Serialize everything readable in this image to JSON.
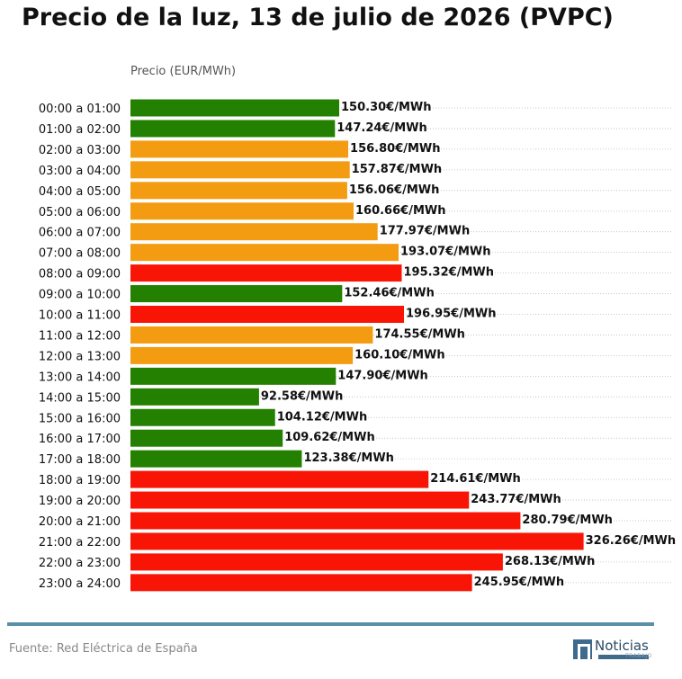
{
  "title": "Precio de la luz, 13 de julio de 2026 (PVPC)",
  "source": "Fuente: Red Eléctrica de España",
  "logo": {
    "name": "Noticias",
    "sub": "TRABAJO"
  },
  "colors": {
    "low": "#238000",
    "mid": "#f39c12",
    "high": "#f81505",
    "grid": "#bbbbbb"
  },
  "chart_data": {
    "type": "bar",
    "orientation": "horizontal",
    "ylabel": "Precio (EUR/MWh)",
    "value_suffix": "€/MWh",
    "xlim": [
      0,
      390
    ],
    "grid": "horizontal-dotted",
    "categories": [
      "00:00 a 01:00",
      "01:00 a 02:00",
      "02:00 a 03:00",
      "03:00 a 04:00",
      "04:00 a 05:00",
      "05:00 a 06:00",
      "06:00 a 07:00",
      "07:00 a 08:00",
      "08:00 a 09:00",
      "09:00 a 10:00",
      "10:00 a 11:00",
      "11:00 a 12:00",
      "12:00 a 13:00",
      "13:00 a 14:00",
      "14:00 a 15:00",
      "15:00 a 16:00",
      "16:00 a 17:00",
      "17:00 a 18:00",
      "18:00 a 19:00",
      "19:00 a 20:00",
      "20:00 a 21:00",
      "21:00 a 22:00",
      "22:00 a 23:00",
      "23:00 a 24:00"
    ],
    "values": [
      150.3,
      147.24,
      156.8,
      157.87,
      156.06,
      160.66,
      177.97,
      193.07,
      195.32,
      152.46,
      196.95,
      174.55,
      160.1,
      147.9,
      92.58,
      104.12,
      109.62,
      123.38,
      214.61,
      243.77,
      280.79,
      326.26,
      268.13,
      245.95
    ],
    "labels": [
      "150.30€/MWh",
      "147.24€/MWh",
      "156.80€/MWh",
      "157.87€/MWh",
      "156.06€/MWh",
      "160.66€/MWh",
      "177.97€/MWh",
      "193.07€/MWh",
      "195.32€/MWh",
      "152.46€/MWh",
      "196.95€/MWh",
      "174.55€/MWh",
      "160.10€/MWh",
      "147.90€/MWh",
      "92.58€/MWh",
      "104.12€/MWh",
      "109.62€/MWh",
      "123.38€/MWh",
      "214.61€/MWh",
      "243.77€/MWh",
      "280.79€/MWh",
      "326.26€/MWh",
      "268.13€/MWh",
      "245.95€/MWh"
    ],
    "bar_colors": [
      "low",
      "low",
      "mid",
      "mid",
      "mid",
      "mid",
      "mid",
      "mid",
      "high",
      "low",
      "high",
      "mid",
      "mid",
      "low",
      "low",
      "low",
      "low",
      "low",
      "high",
      "high",
      "high",
      "high",
      "high",
      "high"
    ]
  }
}
